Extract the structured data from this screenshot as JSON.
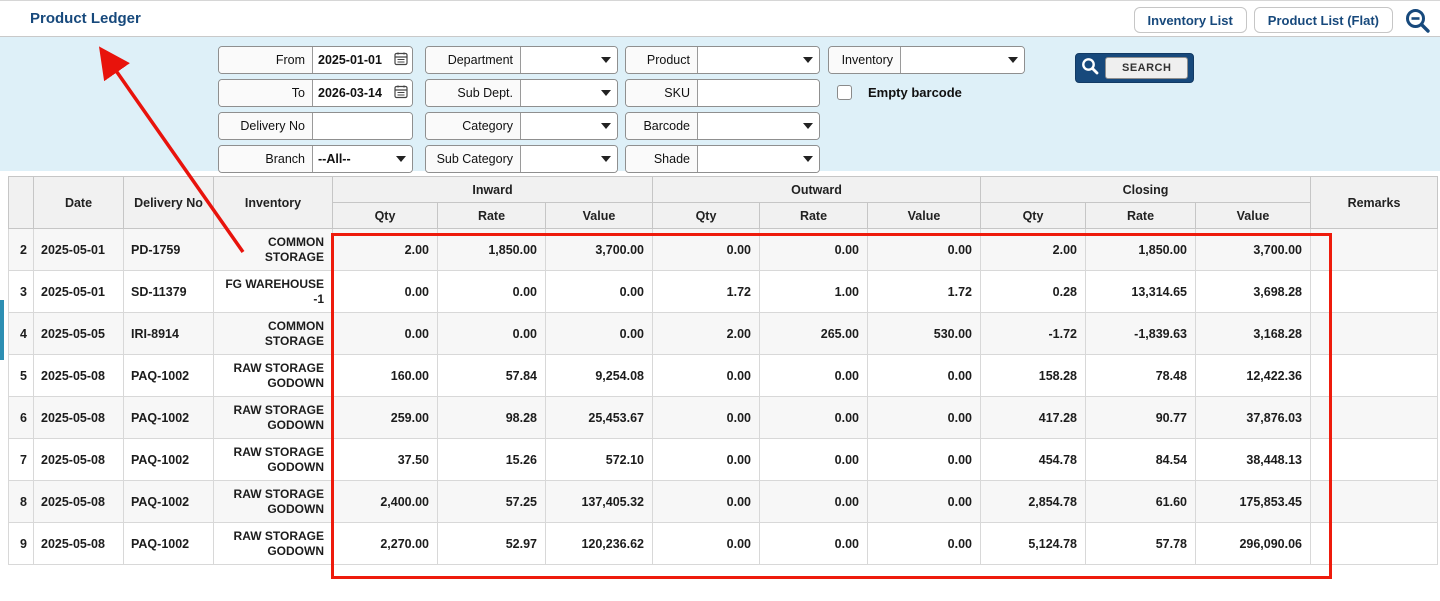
{
  "header": {
    "title": "Product Ledger",
    "buttons": [
      {
        "label": "Inventory List"
      },
      {
        "label": "Product List (Flat)"
      }
    ],
    "zoom_icon": "magnifier-minus"
  },
  "filters": {
    "col1": [
      {
        "label": "From",
        "type": "date",
        "value": "2025-01-01"
      },
      {
        "label": "To",
        "type": "date",
        "value": "2026-03-14"
      },
      {
        "label": "Delivery No",
        "type": "text",
        "value": ""
      },
      {
        "label": "Branch",
        "type": "select",
        "value": "--All--"
      }
    ],
    "col2": [
      {
        "label": "Department",
        "type": "select",
        "value": ""
      },
      {
        "label": "Sub Dept.",
        "type": "select",
        "value": ""
      },
      {
        "label": "Category",
        "type": "select",
        "value": ""
      },
      {
        "label": "Sub Category",
        "type": "select",
        "value": ""
      }
    ],
    "col3": [
      {
        "label": "Product",
        "type": "select",
        "value": ""
      },
      {
        "label": "SKU",
        "type": "text",
        "value": ""
      },
      {
        "label": "Barcode",
        "type": "select",
        "value": ""
      },
      {
        "label": "Shade",
        "type": "select",
        "value": ""
      }
    ],
    "col4": [
      {
        "label": "Inventory",
        "type": "select",
        "value": ""
      }
    ],
    "empty_barcode": {
      "label": "Empty barcode",
      "checked": false
    },
    "search_label": "SEARCH"
  },
  "table": {
    "fixed_headers": [
      "Date",
      "Delivery No",
      "Inventory"
    ],
    "group_headers": [
      "Inward",
      "Outward",
      "Closing"
    ],
    "sub_headers": [
      "Qty",
      "Rate",
      "Value"
    ],
    "remarks_header": "Remarks",
    "rows": [
      {
        "num": "2",
        "date": "2025-05-01",
        "delivery_no": "PD-1759",
        "inventory": "COMMON STORAGE",
        "inward": [
          "2.00",
          "1,850.00",
          "3,700.00"
        ],
        "outward": [
          "0.00",
          "0.00",
          "0.00"
        ],
        "closing": [
          "2.00",
          "1,850.00",
          "3,700.00"
        ],
        "remarks": ""
      },
      {
        "num": "3",
        "date": "2025-05-01",
        "delivery_no": "SD-11379",
        "inventory": "FG WAREHOUSE -1",
        "inward": [
          "0.00",
          "0.00",
          "0.00"
        ],
        "outward": [
          "1.72",
          "1.00",
          "1.72"
        ],
        "closing": [
          "0.28",
          "13,314.65",
          "3,698.28"
        ],
        "remarks": ""
      },
      {
        "num": "4",
        "date": "2025-05-05",
        "delivery_no": "IRI-8914",
        "inventory": "COMMON STORAGE",
        "inward": [
          "0.00",
          "0.00",
          "0.00"
        ],
        "outward": [
          "2.00",
          "265.00",
          "530.00"
        ],
        "closing": [
          "-1.72",
          "-1,839.63",
          "3,168.28"
        ],
        "remarks": ""
      },
      {
        "num": "5",
        "date": "2025-05-08",
        "delivery_no": "PAQ-1002",
        "inventory": "RAW STORAGE GODOWN",
        "inward": [
          "160.00",
          "57.84",
          "9,254.08"
        ],
        "outward": [
          "0.00",
          "0.00",
          "0.00"
        ],
        "closing": [
          "158.28",
          "78.48",
          "12,422.36"
        ],
        "remarks": ""
      },
      {
        "num": "6",
        "date": "2025-05-08",
        "delivery_no": "PAQ-1002",
        "inventory": "RAW STORAGE GODOWN",
        "inward": [
          "259.00",
          "98.28",
          "25,453.67"
        ],
        "outward": [
          "0.00",
          "0.00",
          "0.00"
        ],
        "closing": [
          "417.28",
          "90.77",
          "37,876.03"
        ],
        "remarks": ""
      },
      {
        "num": "7",
        "date": "2025-05-08",
        "delivery_no": "PAQ-1002",
        "inventory": "RAW STORAGE GODOWN",
        "inward": [
          "37.50",
          "15.26",
          "572.10"
        ],
        "outward": [
          "0.00",
          "0.00",
          "0.00"
        ],
        "closing": [
          "454.78",
          "84.54",
          "38,448.13"
        ],
        "remarks": ""
      },
      {
        "num": "8",
        "date": "2025-05-08",
        "delivery_no": "PAQ-1002",
        "inventory": "RAW STORAGE GODOWN",
        "inward": [
          "2,400.00",
          "57.25",
          "137,405.32"
        ],
        "outward": [
          "0.00",
          "0.00",
          "0.00"
        ],
        "closing": [
          "2,854.78",
          "61.60",
          "175,853.45"
        ],
        "remarks": ""
      },
      {
        "num": "9",
        "date": "2025-05-08",
        "delivery_no": "PAQ-1002",
        "inventory": "RAW STORAGE GODOWN",
        "inward": [
          "2,270.00",
          "52.97",
          "120,236.62"
        ],
        "outward": [
          "0.00",
          "0.00",
          "0.00"
        ],
        "closing": [
          "5,124.78",
          "57.78",
          "296,090.06"
        ],
        "remarks": ""
      }
    ]
  },
  "annotations": {
    "arrow_color": "#e8130c",
    "box_color": "#ee1b0c",
    "left_marker_color": "#2d8fb3"
  },
  "colors": {
    "accent_navy": "#17497c",
    "filter_bg": "#def0f8"
  }
}
